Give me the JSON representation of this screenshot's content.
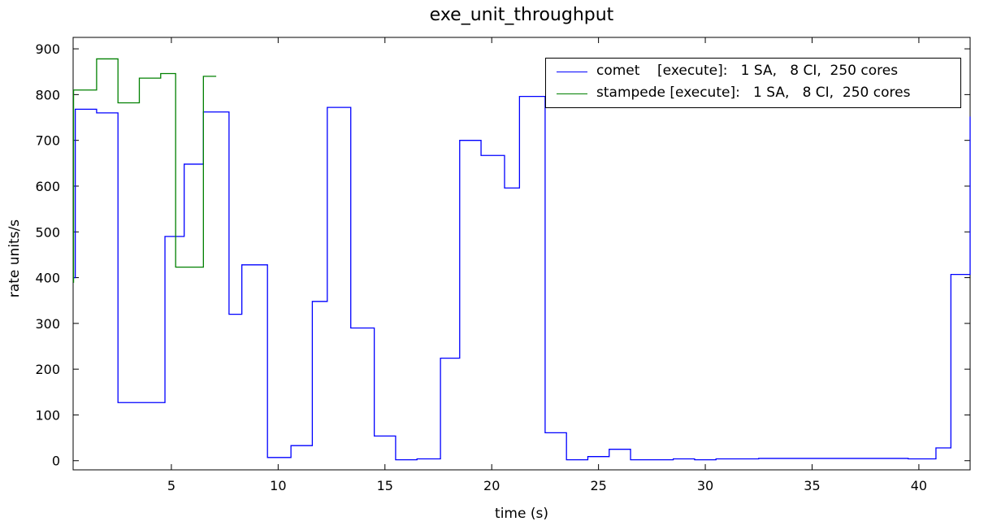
{
  "chart_data": {
    "type": "line",
    "title": "exe_unit_throughput",
    "xlabel": "time (s)",
    "ylabel": "rate units/s",
    "xlim": [
      0.4,
      42.4
    ],
    "ylim": [
      -20,
      925
    ],
    "xticks": [
      5,
      10,
      15,
      20,
      25,
      30,
      35,
      40
    ],
    "yticks": [
      0,
      100,
      200,
      300,
      400,
      500,
      600,
      700,
      800,
      900
    ],
    "grid": false,
    "legend_position": "top-right",
    "series": [
      {
        "name": "comet    [execute]:   1 SA,   8 CI,  250 cores",
        "color": "#0000ff",
        "step": "post",
        "x": [
          0.45,
          0.5,
          1.5,
          2.5,
          3.8,
          4.7,
          5.6,
          6.5,
          7.7,
          8.3,
          9.5,
          10.6,
          11.6,
          12.3,
          13.4,
          14.5,
          15.5,
          16.5,
          17.6,
          18.5,
          19.5,
          20.6,
          21.3,
          22.5,
          23.5,
          24.5,
          25.5,
          26.5,
          28.5,
          29.5,
          30.5,
          32.5,
          39.5,
          40.8,
          41.5,
          42.4
        ],
        "y": [
          400,
          768,
          760,
          127,
          127,
          490,
          648,
          762,
          320,
          428,
          7,
          33,
          348,
          772,
          290,
          54,
          2,
          4,
          224,
          700,
          667,
          596,
          796,
          61,
          2,
          9,
          25,
          2,
          4,
          2,
          4,
          5,
          4,
          28,
          407,
          752
        ]
      },
      {
        "name": "stampede [execute]:   1 SA,   8 CI,  250 cores",
        "color": "#008000",
        "step": "post",
        "x": [
          0.4,
          0.42,
          1.5,
          2.5,
          3.5,
          4.5,
          5.2,
          6.5,
          7.1
        ],
        "y": [
          390,
          810,
          878,
          782,
          836,
          846,
          423,
          840,
          840
        ]
      }
    ]
  }
}
